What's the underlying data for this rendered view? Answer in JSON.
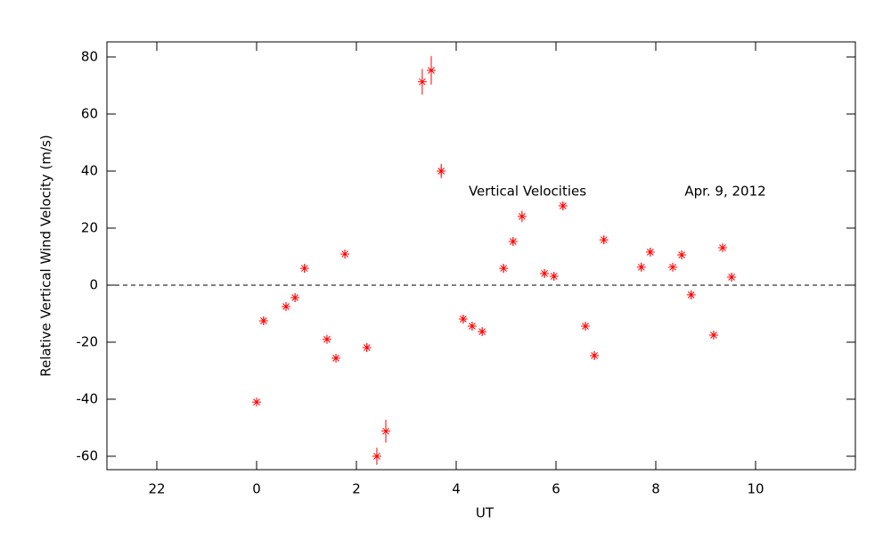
{
  "chart_data": {
    "type": "scatter",
    "x_label": "UT",
    "y_label": "Relative Vertical Wind Velocity (m/s)",
    "annotations": [
      "Vertical Velocities",
      "Apr. 9, 2012"
    ],
    "xlim": [
      -3,
      12
    ],
    "ylim": [
      -64.7,
      85.3
    ],
    "xticks": [
      {
        "value": -2,
        "label": "22"
      },
      0,
      2,
      4,
      6,
      8,
      10
    ],
    "yticks": [
      -60,
      -40,
      -20,
      0,
      20,
      40,
      60,
      80
    ],
    "reference_line": 0,
    "series": [
      {
        "name": "Vertical Velocities",
        "color": "#ff0000",
        "x": [
          0,
          0.14,
          0.59,
          0.77,
          0.96,
          1.41,
          1.59,
          1.77,
          2.21,
          2.41,
          2.59,
          3.32,
          3.5,
          3.7,
          4.14,
          4.32,
          4.52,
          4.95,
          5.14,
          5.32,
          5.77,
          5.96,
          6.14,
          6.59,
          6.77,
          6.96,
          7.71,
          7.89,
          8.34,
          8.52,
          8.71,
          9.16,
          9.34,
          9.52
        ],
        "values": [
          -41,
          -12.5,
          -7.5,
          -4.4,
          5.9,
          -19,
          -25.6,
          10.9,
          -21.9,
          -60,
          -51.2,
          71.3,
          75.3,
          40,
          -11.9,
          -14.4,
          -16.3,
          5.9,
          15.3,
          24.1,
          4.1,
          3.1,
          27.8,
          -14.4,
          -24.7,
          15.9,
          6.3,
          11.6,
          6.3,
          10.6,
          -3.4,
          -17.5,
          13.1,
          2.8
        ],
        "errors": [
          1.5,
          1.5,
          1.5,
          1.5,
          1.5,
          1.5,
          1.5,
          1.5,
          1.5,
          3,
          4,
          4.5,
          5,
          2.5,
          1.5,
          1.5,
          1.5,
          1.5,
          1.5,
          2,
          1.5,
          1.5,
          1.5,
          1.5,
          1.5,
          1.5,
          1.5,
          1.5,
          1.5,
          1.5,
          1.5,
          1.5,
          1.5,
          1.5
        ]
      }
    ]
  }
}
